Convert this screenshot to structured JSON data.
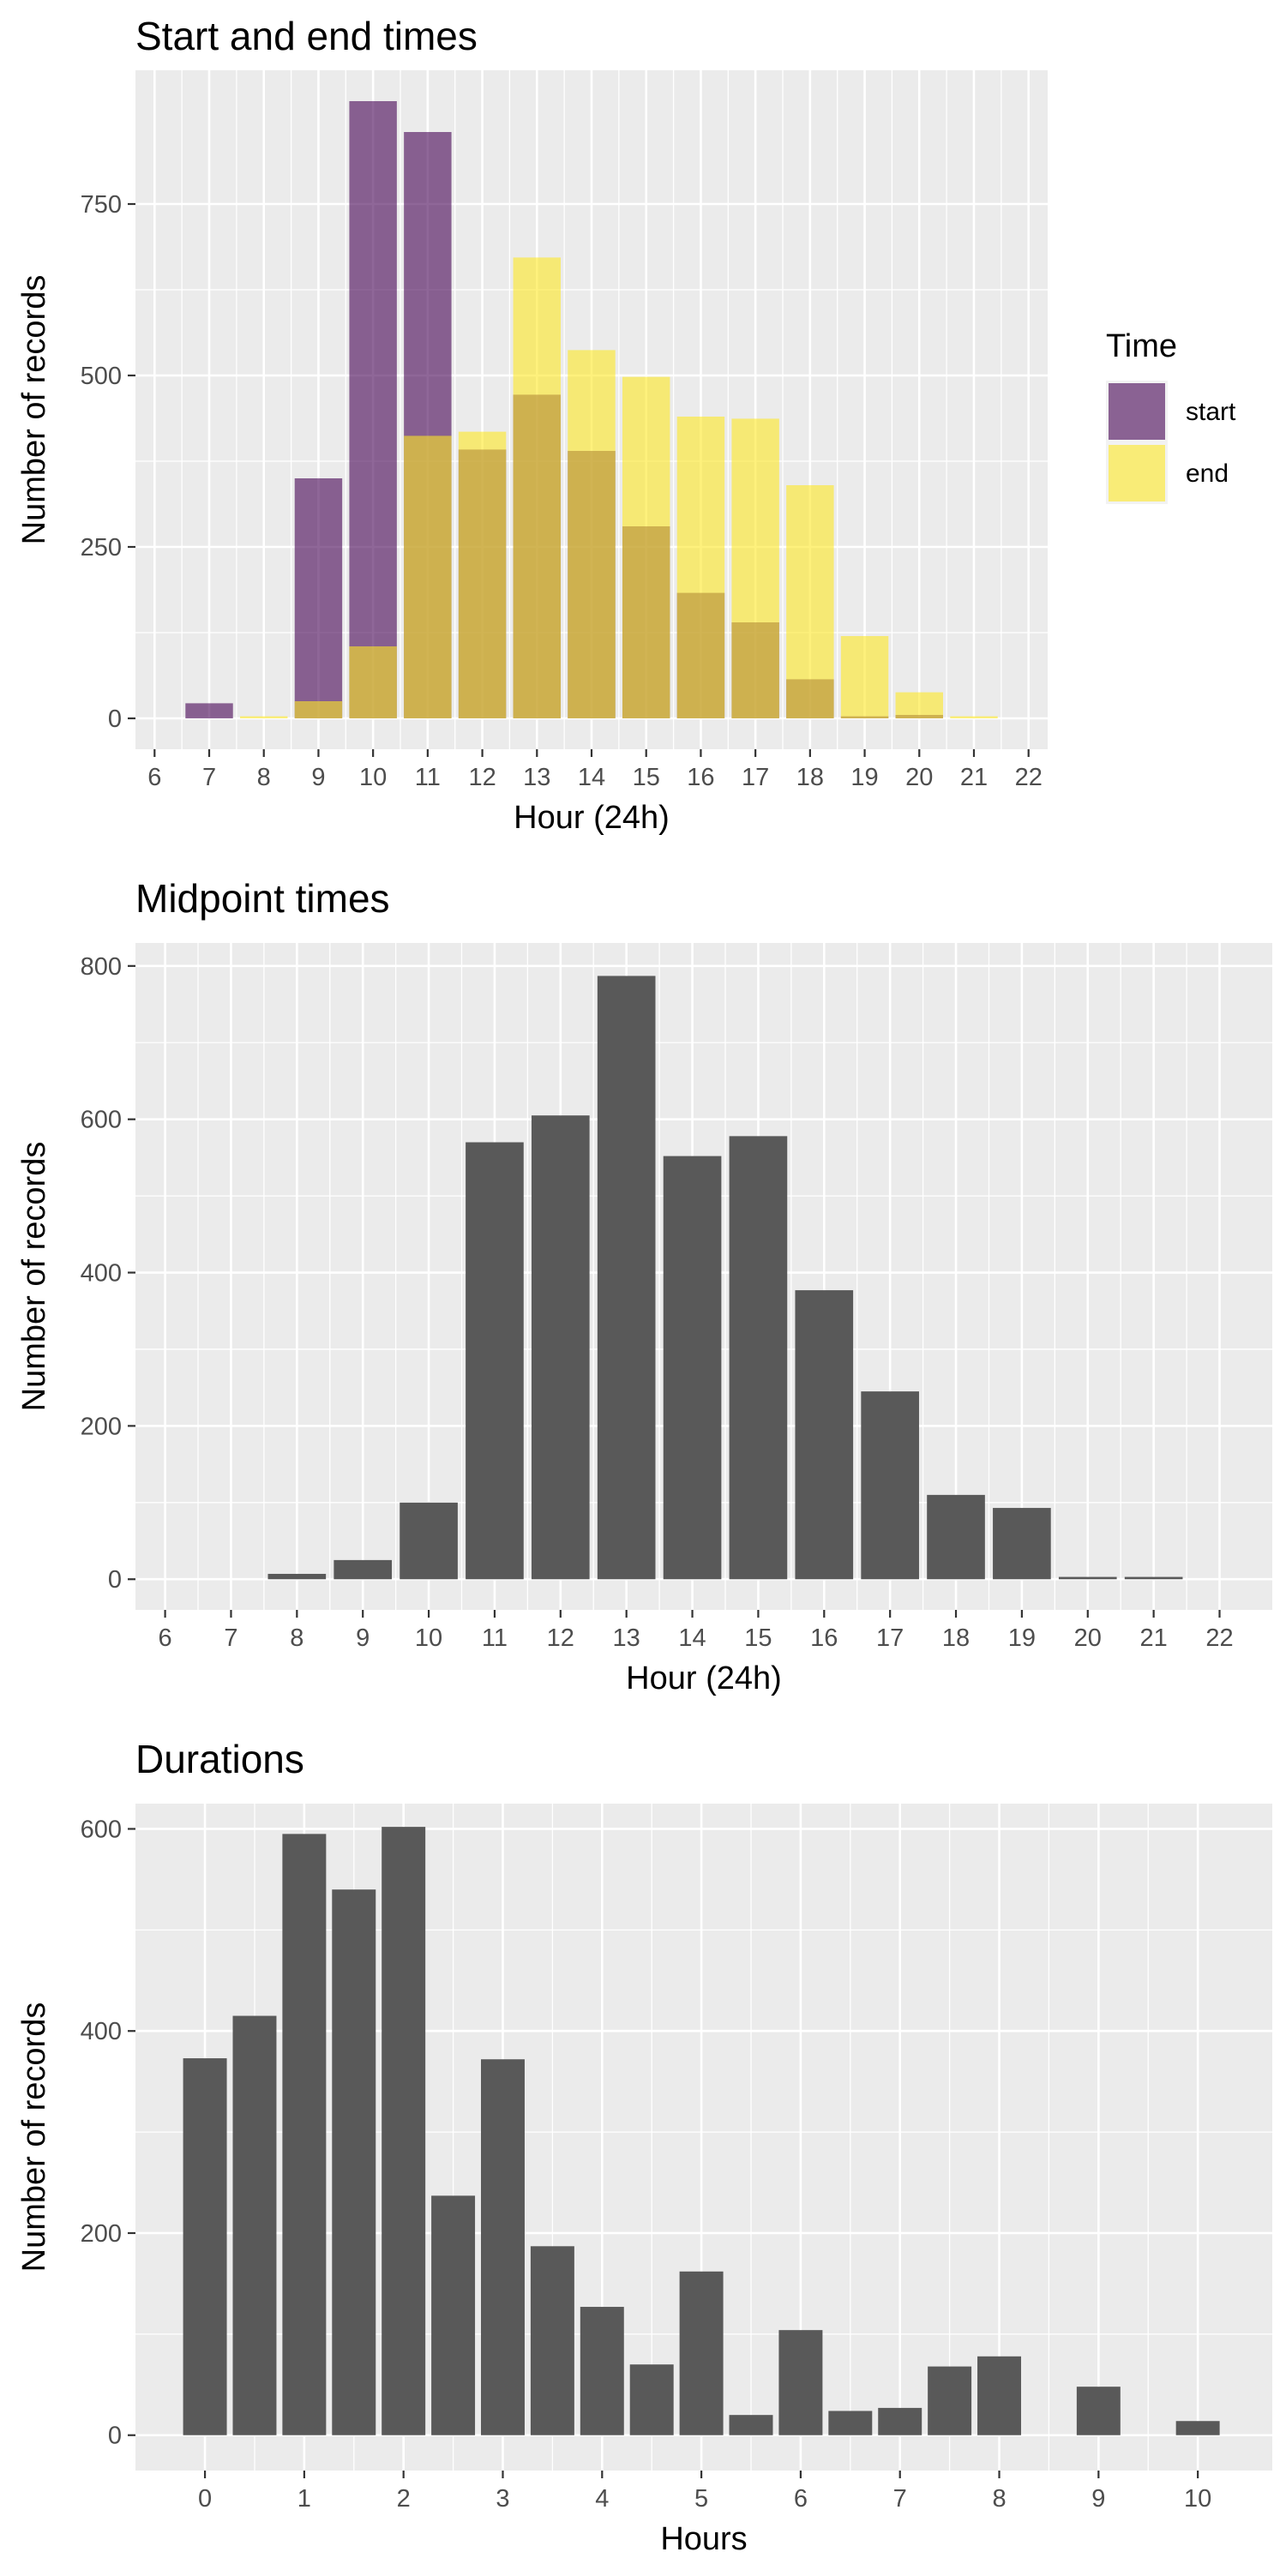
{
  "chart_data": [
    {
      "type": "bar",
      "title": "Start and end times",
      "xlabel": "Hour (24h)",
      "ylabel": "Number of records",
      "x": [
        7,
        8,
        9,
        10,
        11,
        12,
        13,
        14,
        15,
        16,
        17,
        18,
        19,
        20,
        21
      ],
      "xticks": [
        6,
        7,
        8,
        9,
        10,
        11,
        12,
        13,
        14,
        15,
        16,
        17,
        18,
        19,
        20,
        21,
        22
      ],
      "xlim": [
        5.65,
        22.35
      ],
      "yticks": [
        0,
        250,
        500,
        750
      ],
      "ylim": [
        -45,
        945
      ],
      "legend": {
        "title": "Time",
        "position": "right"
      },
      "series": [
        {
          "name": "start",
          "color": "#440154",
          "values": [
            22,
            0,
            350,
            900,
            855,
            392,
            472,
            390,
            280,
            183,
            140,
            57,
            3,
            5,
            0
          ]
        },
        {
          "name": "end",
          "color": "#FDE725",
          "values": [
            0,
            3,
            25,
            105,
            412,
            418,
            672,
            537,
            498,
            440,
            437,
            340,
            120,
            38,
            3
          ]
        }
      ]
    },
    {
      "type": "bar",
      "title": "Midpoint times",
      "xlabel": "Hour (24h)",
      "ylabel": "Number of records",
      "color": "#595959",
      "x": [
        8,
        9,
        10,
        11,
        12,
        13,
        14,
        15,
        16,
        17,
        18,
        19,
        20,
        21
      ],
      "values": [
        7,
        25,
        100,
        570,
        605,
        787,
        552,
        578,
        377,
        245,
        110,
        93,
        3,
        3
      ],
      "xticks": [
        6,
        7,
        8,
        9,
        10,
        11,
        12,
        13,
        14,
        15,
        16,
        17,
        18,
        19,
        20,
        21,
        22
      ],
      "xlim": [
        5.55,
        22.8
      ],
      "yticks": [
        0,
        200,
        400,
        600,
        800
      ],
      "ylim": [
        -40,
        830
      ]
    },
    {
      "type": "bar",
      "title": "Durations",
      "xlabel": "Hours",
      "ylabel": "Number of records",
      "color": "#595959",
      "x": [
        0,
        0.5,
        1,
        1.5,
        2,
        2.5,
        3,
        3.5,
        4,
        4.5,
        5,
        5.5,
        6,
        6.5,
        7,
        7.5,
        8,
        9,
        10
      ],
      "values": [
        373,
        415,
        595,
        540,
        602,
        237,
        372,
        187,
        127,
        70,
        162,
        20,
        104,
        24,
        27,
        68,
        78,
        48,
        14
      ],
      "xticks": [
        0,
        1,
        2,
        3,
        4,
        5,
        6,
        7,
        8,
        9,
        10
      ],
      "xlim": [
        -0.7,
        10.75
      ],
      "yticks": [
        0,
        200,
        400,
        600
      ],
      "ylim": [
        -35,
        625
      ]
    }
  ]
}
